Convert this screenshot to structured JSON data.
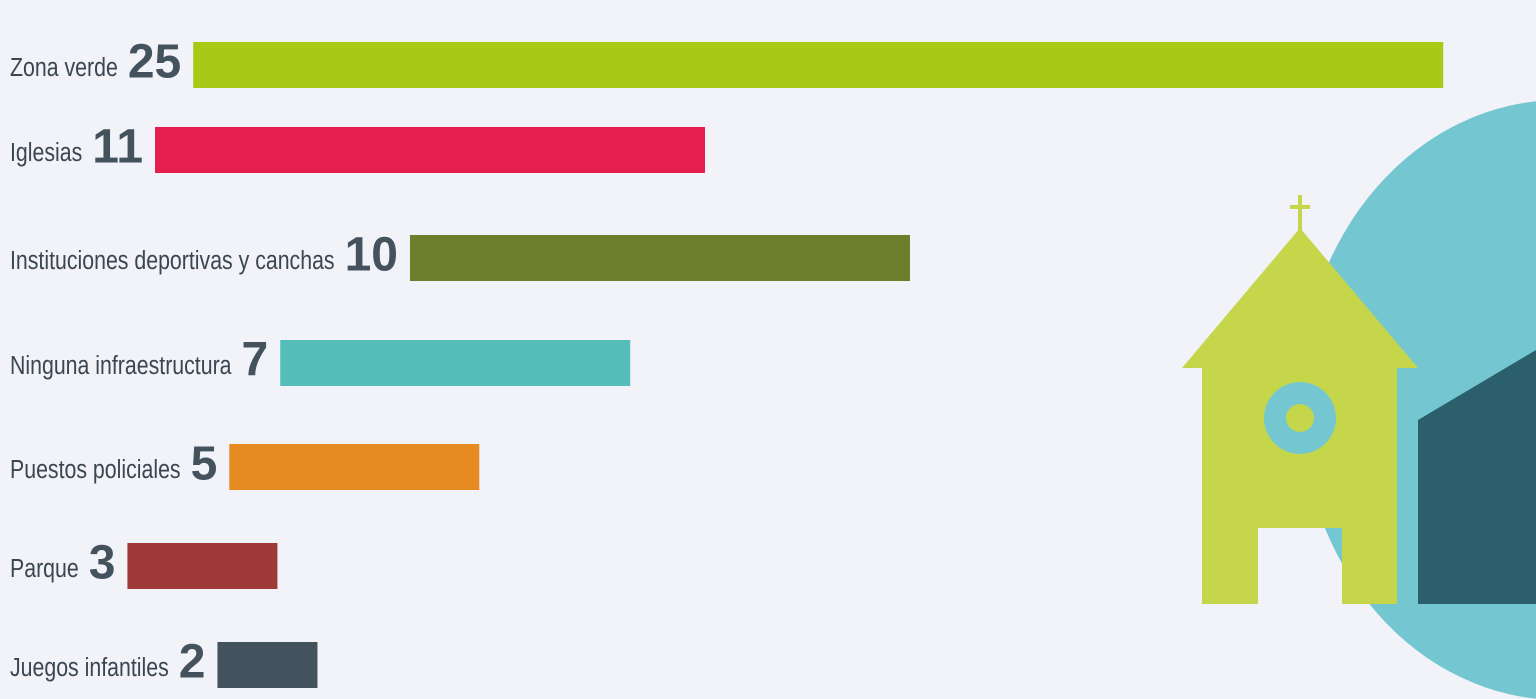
{
  "chart_data": {
    "type": "bar",
    "categories": [
      "Zona verde",
      "Iglesias",
      "Instituciones deportivas y canchas",
      "Ninguna infraestructura",
      "Puestos policiales",
      "Parque",
      "Juegos infantiles"
    ],
    "values": [
      25,
      11,
      10,
      7,
      5,
      3,
      2
    ],
    "colors": [
      "#aac816",
      "#e61e50",
      "#6e7d2a",
      "#55bebb",
      "#e58b22",
      "#9e3a38",
      "#44525e"
    ]
  }
}
